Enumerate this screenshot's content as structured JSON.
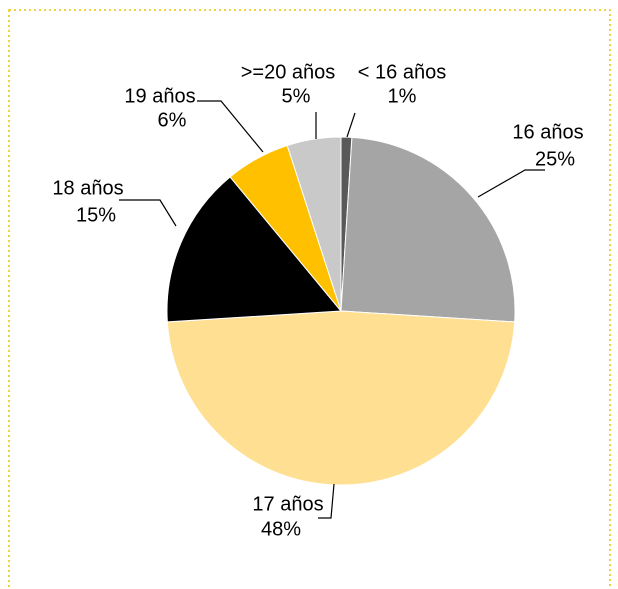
{
  "chart_data": {
    "type": "pie",
    "categories": [
      "< 16 años",
      "16 años",
      "17 años",
      "18 años",
      "19 años",
      ">=20 años"
    ],
    "values": [
      1,
      25,
      48,
      15,
      6,
      5
    ],
    "value_labels": [
      "1%",
      "25%",
      "48%",
      "15%",
      "6%",
      "5%"
    ],
    "colors": [
      "#595959",
      "#a5a5a5",
      "#ffdf91",
      "#000000",
      "#ffc000",
      "#c9c9c9"
    ]
  }
}
